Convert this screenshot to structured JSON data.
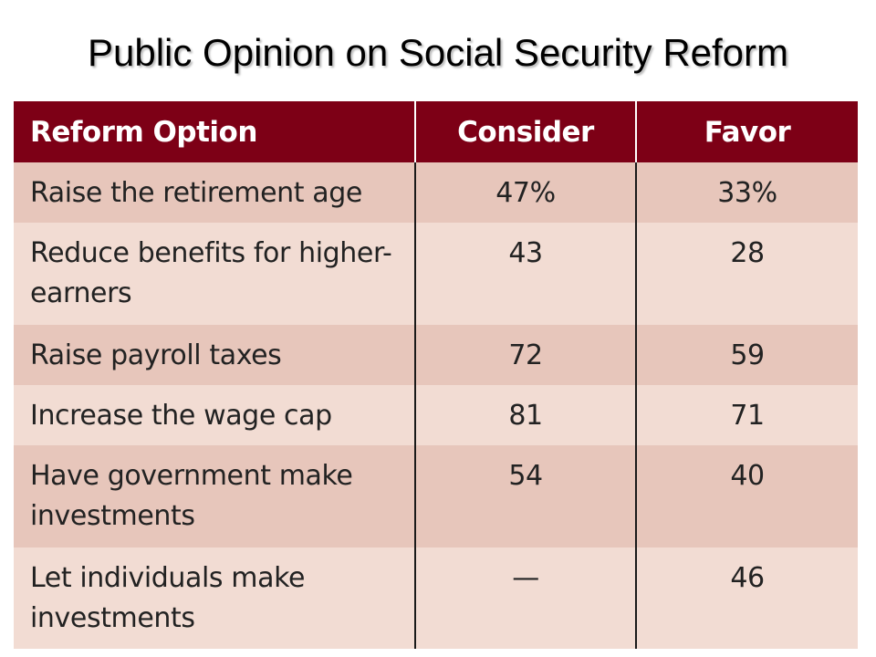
{
  "title": "Public Opinion on Social Security Reform",
  "table": {
    "headers": [
      "Reform Option",
      "Consider",
      "Favor"
    ],
    "rows": [
      {
        "option": "Raise the retirement age",
        "consider": "47%",
        "favor": "33%"
      },
      {
        "option": "Reduce benefits for higher-earners",
        "consider": "43",
        "favor": "28"
      },
      {
        "option": "Raise payroll taxes",
        "consider": "72",
        "favor": "59"
      },
      {
        "option": "Increase the wage cap",
        "consider": "81",
        "favor": "71"
      },
      {
        "option": "Have government make investments",
        "consider": "54",
        "favor": "40"
      },
      {
        "option": "Let individuals make investments",
        "consider": "—",
        "favor": "46"
      }
    ]
  },
  "colors": {
    "header_bg": "#7d0016",
    "row_dark": "#e7c6bb",
    "row_light": "#f2dcd3"
  }
}
